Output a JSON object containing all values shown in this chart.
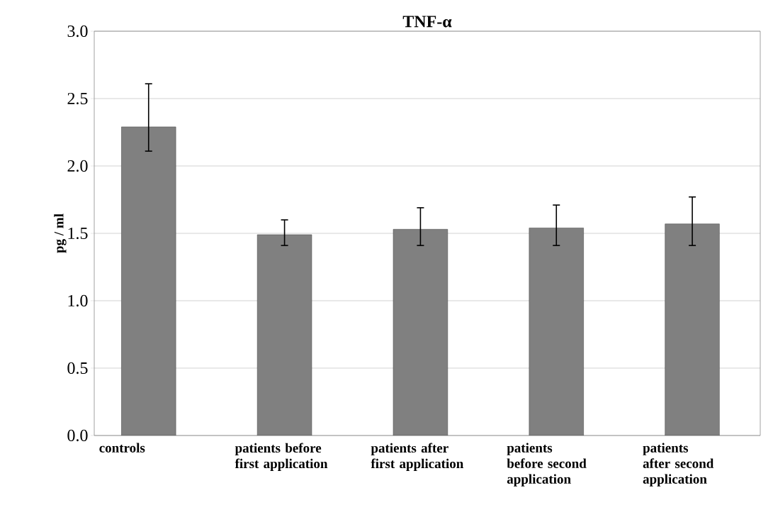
{
  "chart_data": {
    "type": "bar",
    "title": "TNF-α",
    "ylabel": "pg / ml",
    "categories": [
      "controls",
      "patients before first application",
      "patients after first application",
      "patients before second application",
      "patients after second application"
    ],
    "values": [
      2.29,
      1.49,
      1.53,
      1.54,
      1.57
    ],
    "errors": [
      [
        2.11,
        2.61
      ],
      [
        1.41,
        1.6
      ],
      [
        1.41,
        1.69
      ],
      [
        1.41,
        1.71
      ],
      [
        1.41,
        1.77
      ]
    ],
    "color": "#808080",
    "ylim": [
      0,
      3
    ],
    "yticks": [
      {
        "value": 0,
        "label": "0.0"
      },
      {
        "value": 0.5,
        "label": "0.5"
      },
      {
        "value": 1,
        "label": "1.0"
      },
      {
        "value": 1.5,
        "label": "1.5"
      },
      {
        "value": 2,
        "label": "2.0"
      },
      {
        "value": 2.5,
        "label": "2.5"
      },
      {
        "value": 3,
        "label": "3.0"
      }
    ],
    "grid": "y"
  }
}
